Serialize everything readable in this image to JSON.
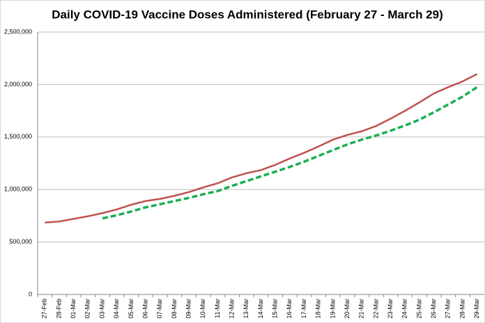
{
  "chart_data": {
    "type": "line",
    "title": "Daily COVID-19 Vaccine Doses Administered (February 27 - March 29)",
    "categories": [
      "27-Feb",
      "28-Feb",
      "01-Mar",
      "02-Mar",
      "03-Mar",
      "04-Mar",
      "05-Mar",
      "06-Mar",
      "07-Mar",
      "08-Mar",
      "09-Mar",
      "10-Mar",
      "11-Mar",
      "12-Mar",
      "13-Mar",
      "14-Mar",
      "15-Mar",
      "16-Mar",
      "17-Mar",
      "18-Mar",
      "19-Mar",
      "20-Mar",
      "21-Mar",
      "22-Mar",
      "23-Mar",
      "24-Mar",
      "25-Mar",
      "26-Mar",
      "27-Mar",
      "28-Mar",
      "29-Mar"
    ],
    "series": [
      {
        "color": "#c0504d",
        "dashed": false,
        "values": [
          685000,
          695000,
          720000,
          745000,
          775000,
          810000,
          855000,
          890000,
          910000,
          940000,
          975000,
          1020000,
          1060000,
          1115000,
          1155000,
          1185000,
          1235000,
          1295000,
          1350000,
          1410000,
          1475000,
          1520000,
          1555000,
          1605000,
          1675000,
          1750000,
          1830000,
          1915000,
          1975000,
          2030000,
          2100000
        ]
      },
      {
        "color": "#1aaf54",
        "dashed": true,
        "values": [
          null,
          null,
          null,
          null,
          725000,
          755000,
          790000,
          830000,
          860000,
          890000,
          920000,
          955000,
          985000,
          1035000,
          1080000,
          1125000,
          1170000,
          1215000,
          1265000,
          1320000,
          1375000,
          1430000,
          1475000,
          1515000,
          1560000,
          1610000,
          1665000,
          1735000,
          1810000,
          1885000,
          1975000
        ]
      }
    ],
    "ylim": [
      0,
      2500000
    ],
    "yticks": [
      0,
      {
        "value": 500000,
        "label": "500,000"
      },
      {
        "value": 1000000,
        "label": "1,000,000"
      },
      {
        "value": 1500000,
        "label": "1,500,000"
      },
      {
        "value": 2000000,
        "label": "2,000,000"
      },
      {
        "value": 2500000,
        "label": "2,500,000"
      }
    ],
    "grid": true
  }
}
